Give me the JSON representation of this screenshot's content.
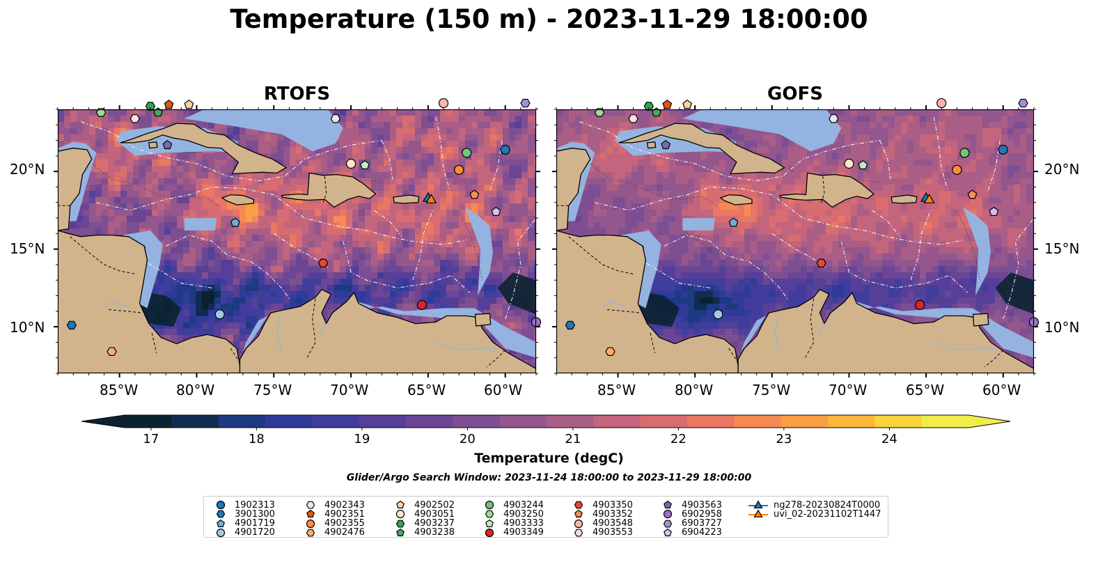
{
  "title": "Temperature (150 m) - 2023-11-29 18:00:00",
  "panels": [
    {
      "title": "RTOFS",
      "side": "left"
    },
    {
      "title": "GOFS",
      "side": "right"
    }
  ],
  "lon_ticks": [
    "85°W",
    "80°W",
    "75°W",
    "70°W",
    "65°W",
    "60°W"
  ],
  "lat_ticks": [
    "20°N",
    "15°N",
    "10°N"
  ],
  "map_extent": {
    "lon": [
      -89,
      -58
    ],
    "lat": [
      7,
      24
    ]
  },
  "colorbar": {
    "label": "Temperature (degC)",
    "ticks": [
      "17",
      "18",
      "19",
      "20",
      "21",
      "22",
      "23",
      "24"
    ],
    "range": [
      16.75,
      24.75
    ],
    "colors": [
      "#0c2231",
      "#102c4f",
      "#1d3a82",
      "#2f3b99",
      "#413d9c",
      "#553f98",
      "#6a4694",
      "#7d4f92",
      "#93568d",
      "#aa5e86",
      "#c3657d",
      "#d86d71",
      "#ea7763",
      "#f78a53",
      "#fb9f45",
      "#fbb73b",
      "#f7d53b",
      "#f0ec4a"
    ],
    "extend": "both"
  },
  "colors": {
    "land": "#d2b48c",
    "shallow_water": "#94b3e0",
    "deep_dark": "#0c2231"
  },
  "search_window": "Glider/Argo Search Window: 2023-11-24 18:00:00 to 2023-11-29 18:00:00",
  "markers": [
    {
      "id": "1902313",
      "marker": "circle",
      "color": "#1f77b4",
      "lon": -60.0,
      "lat": 21.4
    },
    {
      "id": "3901300",
      "marker": "hexagon",
      "color": "#1f77b4",
      "lon": -88.1,
      "lat": 10.1
    },
    {
      "id": "4901719",
      "marker": "pentagon",
      "color": "#6baed6",
      "lon": -77.5,
      "lat": 16.7
    },
    {
      "id": "4901720",
      "marker": "circle",
      "color": "#9ecae1",
      "lon": -78.5,
      "lat": 10.8
    },
    {
      "id": "4902343",
      "marker": "hexagon",
      "color": "#deebf7",
      "lon": -71.0,
      "lat": 23.4
    },
    {
      "id": "4902351",
      "marker": "pentagon",
      "color": "#e6550d",
      "lon": -81.8,
      "lat": 24.3
    },
    {
      "id": "4902355",
      "marker": "circle",
      "color": "#fd8d3c",
      "lon": -63.0,
      "lat": 20.1
    },
    {
      "id": "4902476",
      "marker": "hexagon",
      "color": "#fdae6b",
      "lon": -85.5,
      "lat": 8.4
    },
    {
      "id": "4902502",
      "marker": "pentagon",
      "color": "#fdd0a2",
      "lon": -80.5,
      "lat": 24.3
    },
    {
      "id": "4903051",
      "marker": "circle",
      "color": "#fee6ce",
      "lon": -70.0,
      "lat": 20.5
    },
    {
      "id": "4903237",
      "marker": "hexagon",
      "color": "#31a354",
      "lon": -83.0,
      "lat": 24.2
    },
    {
      "id": "4903238",
      "marker": "pentagon",
      "color": "#41ab5d",
      "lon": -82.5,
      "lat": 23.8
    },
    {
      "id": "4903244",
      "marker": "circle",
      "color": "#74c476",
      "lon": -62.5,
      "lat": 21.2
    },
    {
      "id": "4903250",
      "marker": "hexagon",
      "color": "#a1d99b",
      "lon": -86.2,
      "lat": 23.8
    },
    {
      "id": "4903333",
      "marker": "pentagon",
      "color": "#c7e9c0",
      "lon": -69.1,
      "lat": 20.4
    },
    {
      "id": "4903349",
      "marker": "circle",
      "color": "#d62728",
      "lon": -65.4,
      "lat": 11.4
    },
    {
      "id": "4903350",
      "marker": "hexagon",
      "color": "#e34a33",
      "lon": -71.8,
      "lat": 14.1
    },
    {
      "id": "4903352",
      "marker": "pentagon",
      "color": "#fc8d59",
      "lon": -62.0,
      "lat": 18.5
    },
    {
      "id": "4903548",
      "marker": "circle",
      "color": "#fbb4ae",
      "lon": -64.0,
      "lat": 24.4
    },
    {
      "id": "4903553",
      "marker": "hexagon",
      "color": "#fde0dd",
      "lon": -84.0,
      "lat": 23.4
    },
    {
      "id": "4903563",
      "marker": "pentagon",
      "color": "#756bb1",
      "lon": -81.9,
      "lat": 21.7
    },
    {
      "id": "6902958",
      "marker": "circle",
      "color": "#9e72c9",
      "lon": -58.0,
      "lat": 10.3
    },
    {
      "id": "6903727",
      "marker": "hexagon",
      "color": "#a68ed6",
      "lon": -58.7,
      "lat": 24.4
    },
    {
      "id": "6904223",
      "marker": "pentagon",
      "color": "#d8bff0",
      "lon": -60.6,
      "lat": 17.4
    }
  ],
  "tracks": [
    {
      "id": "ng278-20230824T0000",
      "marker": "triangle",
      "color": "#1f77b4",
      "lon": -65.0,
      "lat": 18.3
    },
    {
      "id": "uvi_02-20231102T1447",
      "marker": "triangle",
      "color": "#ff7f0e",
      "lon": -64.8,
      "lat": 18.2
    }
  ]
}
